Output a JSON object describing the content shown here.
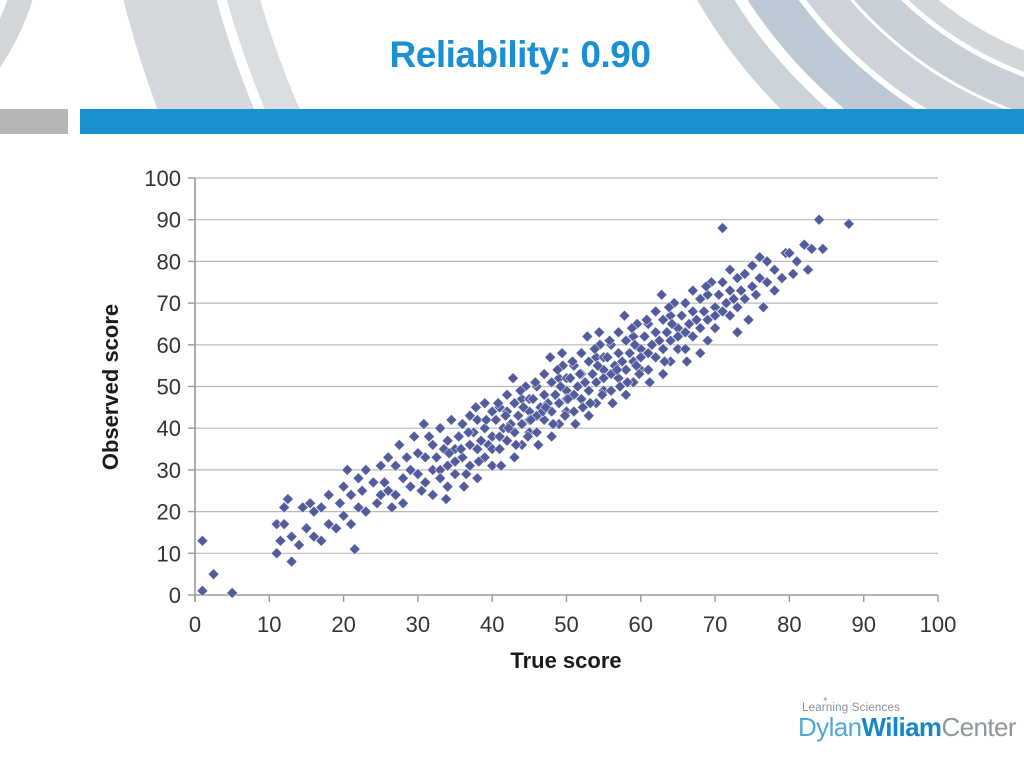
{
  "slide": {
    "title": "Reliability: 0.90"
  },
  "colors": {
    "title_blue": "#1b8fd1",
    "accent_bar_blue": "#1b90cf",
    "accent_left_gray": "#b6b6b6",
    "marker": "#525c9c",
    "gridline": "#b9b9b9",
    "axis": "#9a9a9a",
    "tick_text": "#333333"
  },
  "chart_data": {
    "type": "scatter",
    "title": "",
    "xlabel": "True score",
    "ylabel": "Observed score",
    "xlim": [
      0,
      100
    ],
    "ylim": [
      0,
      100
    ],
    "xticks": [
      0,
      10,
      20,
      30,
      40,
      50,
      60,
      70,
      80,
      90,
      100
    ],
    "yticks": [
      0,
      10,
      20,
      30,
      40,
      50,
      60,
      70,
      80,
      90,
      100
    ],
    "grid": "horizontal",
    "legend": "none",
    "marker": "diamond",
    "marker_color": "#525c9c",
    "points": [
      [
        1,
        13
      ],
      [
        1,
        1
      ],
      [
        2.5,
        5
      ],
      [
        5,
        0.5
      ],
      [
        11,
        10
      ],
      [
        11,
        17
      ],
      [
        11.5,
        13
      ],
      [
        12,
        21
      ],
      [
        12,
        17
      ],
      [
        12.5,
        23
      ],
      [
        13,
        8
      ],
      [
        13,
        14
      ],
      [
        14,
        12
      ],
      [
        14.5,
        21
      ],
      [
        15,
        16
      ],
      [
        15.5,
        22
      ],
      [
        16,
        14
      ],
      [
        16,
        20
      ],
      [
        17,
        13
      ],
      [
        17,
        21
      ],
      [
        18,
        17
      ],
      [
        18,
        24
      ],
      [
        19,
        16
      ],
      [
        19.5,
        22
      ],
      [
        20,
        19
      ],
      [
        20,
        26
      ],
      [
        20.5,
        30
      ],
      [
        21,
        24
      ],
      [
        21,
        17
      ],
      [
        21.5,
        11
      ],
      [
        22,
        28
      ],
      [
        22,
        21
      ],
      [
        22.5,
        25
      ],
      [
        23,
        20
      ],
      [
        23,
        30
      ],
      [
        24,
        27
      ],
      [
        24.5,
        22
      ],
      [
        25,
        24
      ],
      [
        25,
        31
      ],
      [
        25.5,
        27
      ],
      [
        26,
        25
      ],
      [
        26,
        33
      ],
      [
        26.5,
        21
      ],
      [
        27,
        24
      ],
      [
        27,
        31
      ],
      [
        27.5,
        36
      ],
      [
        28,
        28
      ],
      [
        28,
        22
      ],
      [
        28.5,
        33
      ],
      [
        29,
        30
      ],
      [
        29,
        26
      ],
      [
        29.5,
        38
      ],
      [
        30,
        29
      ],
      [
        30,
        34
      ],
      [
        30.5,
        25
      ],
      [
        31,
        33
      ],
      [
        31,
        27
      ],
      [
        31.5,
        38
      ],
      [
        32,
        30
      ],
      [
        32,
        36
      ],
      [
        32,
        24
      ],
      [
        32.5,
        33
      ],
      [
        33,
        30
      ],
      [
        33,
        40
      ],
      [
        33,
        28
      ],
      [
        33.5,
        35
      ],
      [
        34,
        31
      ],
      [
        34,
        37
      ],
      [
        34,
        26
      ],
      [
        34.5,
        42
      ],
      [
        35,
        35
      ],
      [
        35,
        29
      ],
      [
        35,
        32
      ],
      [
        30.8,
        41
      ],
      [
        33.8,
        23
      ],
      [
        34.2,
        34
      ],
      [
        35.5,
        38
      ],
      [
        36,
        33
      ],
      [
        36,
        41
      ],
      [
        36.5,
        29
      ],
      [
        37,
        36
      ],
      [
        37,
        43
      ],
      [
        37,
        31
      ],
      [
        37.5,
        39
      ],
      [
        38,
        35
      ],
      [
        38,
        42
      ],
      [
        38,
        28
      ],
      [
        38.5,
        37
      ],
      [
        39,
        40
      ],
      [
        39,
        33
      ],
      [
        39,
        46
      ],
      [
        39.5,
        36
      ],
      [
        40,
        38
      ],
      [
        40,
        44
      ],
      [
        40,
        31
      ],
      [
        40,
        35
      ],
      [
        36.2,
        26
      ],
      [
        37.8,
        45
      ],
      [
        38.2,
        32
      ],
      [
        39.2,
        42
      ],
      [
        35.8,
        35
      ],
      [
        36.8,
        39
      ],
      [
        40.5,
        42
      ],
      [
        41,
        38
      ],
      [
        41,
        45
      ],
      [
        41,
        35
      ],
      [
        41.5,
        40
      ],
      [
        42,
        44
      ],
      [
        42,
        37
      ],
      [
        42,
        48
      ],
      [
        42.5,
        41
      ],
      [
        43,
        39
      ],
      [
        43,
        46
      ],
      [
        43,
        33
      ],
      [
        43.5,
        43
      ],
      [
        44,
        41
      ],
      [
        44,
        47
      ],
      [
        44,
        36
      ],
      [
        44.5,
        50
      ],
      [
        45,
        44
      ],
      [
        45,
        39
      ],
      [
        45,
        42
      ],
      [
        41.2,
        31
      ],
      [
        42.8,
        52
      ],
      [
        43.2,
        36
      ],
      [
        44.2,
        45
      ],
      [
        40.8,
        46
      ],
      [
        41.8,
        43
      ],
      [
        42.2,
        40
      ],
      [
        43.8,
        49
      ],
      [
        44.8,
        38
      ],
      [
        45,
        47
      ],
      [
        45.5,
        47
      ],
      [
        46,
        43
      ],
      [
        46,
        50
      ],
      [
        46,
        39
      ],
      [
        46.5,
        45
      ],
      [
        47,
        48
      ],
      [
        47,
        42
      ],
      [
        47,
        53
      ],
      [
        47.5,
        46
      ],
      [
        48,
        44
      ],
      [
        48,
        51
      ],
      [
        48,
        38
      ],
      [
        48.5,
        48
      ],
      [
        49,
        46
      ],
      [
        49,
        52
      ],
      [
        49,
        41
      ],
      [
        49.5,
        55
      ],
      [
        50,
        49
      ],
      [
        50,
        44
      ],
      [
        50,
        47
      ],
      [
        46.2,
        36
      ],
      [
        47.8,
        57
      ],
      [
        48.2,
        41
      ],
      [
        49.2,
        50
      ],
      [
        45.8,
        51
      ],
      [
        46.8,
        44
      ],
      [
        47.2,
        45
      ],
      [
        48.8,
        54
      ],
      [
        49.8,
        43
      ],
      [
        50,
        52
      ],
      [
        45.2,
        42
      ],
      [
        49.4,
        58
      ],
      [
        50.5,
        52
      ],
      [
        51,
        48
      ],
      [
        51,
        55
      ],
      [
        51,
        44
      ],
      [
        51.5,
        50
      ],
      [
        52,
        53
      ],
      [
        52,
        47
      ],
      [
        52,
        58
      ],
      [
        52.5,
        51
      ],
      [
        53,
        49
      ],
      [
        53,
        56
      ],
      [
        53,
        43
      ],
      [
        53.5,
        53
      ],
      [
        54,
        51
      ],
      [
        54,
        57
      ],
      [
        54,
        46
      ],
      [
        54.5,
        60
      ],
      [
        55,
        54
      ],
      [
        55,
        49
      ],
      [
        55,
        52
      ],
      [
        51.2,
        41
      ],
      [
        52.8,
        62
      ],
      [
        53.2,
        46
      ],
      [
        54.2,
        55
      ],
      [
        50.8,
        56
      ],
      [
        51.8,
        53
      ],
      [
        52.2,
        45
      ],
      [
        53.8,
        59
      ],
      [
        54.8,
        48
      ],
      [
        55,
        57
      ],
      [
        50.2,
        47
      ],
      [
        54.4,
        63
      ],
      [
        55.5,
        57
      ],
      [
        56,
        53
      ],
      [
        56,
        60
      ],
      [
        56,
        49
      ],
      [
        56.5,
        55
      ],
      [
        57,
        58
      ],
      [
        57,
        52
      ],
      [
        57,
        63
      ],
      [
        57.5,
        56
      ],
      [
        58,
        54
      ],
      [
        58,
        61
      ],
      [
        58,
        48
      ],
      [
        58.5,
        58
      ],
      [
        59,
        56
      ],
      [
        59,
        62
      ],
      [
        59,
        51
      ],
      [
        59.5,
        65
      ],
      [
        60,
        59
      ],
      [
        60,
        54
      ],
      [
        60,
        57
      ],
      [
        56.2,
        46
      ],
      [
        57.8,
        67
      ],
      [
        58.2,
        51
      ],
      [
        59.2,
        60
      ],
      [
        55.8,
        61
      ],
      [
        56.8,
        54
      ],
      [
        57.2,
        50
      ],
      [
        58.8,
        64
      ],
      [
        59.8,
        53
      ],
      [
        59.4,
        55
      ],
      [
        60.5,
        62
      ],
      [
        61,
        58
      ],
      [
        61,
        65
      ],
      [
        61,
        54
      ],
      [
        61.5,
        60
      ],
      [
        62,
        63
      ],
      [
        62,
        57
      ],
      [
        62,
        68
      ],
      [
        62.5,
        61
      ],
      [
        63,
        59
      ],
      [
        63,
        66
      ],
      [
        63,
        53
      ],
      [
        63.5,
        63
      ],
      [
        64,
        61
      ],
      [
        64,
        67
      ],
      [
        64,
        56
      ],
      [
        64.5,
        70
      ],
      [
        65,
        64
      ],
      [
        65,
        59
      ],
      [
        65,
        62
      ],
      [
        61.2,
        51
      ],
      [
        62.8,
        72
      ],
      [
        63.2,
        56
      ],
      [
        64.2,
        65
      ],
      [
        60.8,
        66
      ],
      [
        63.8,
        69
      ],
      [
        65.5,
        67
      ],
      [
        66,
        63
      ],
      [
        66,
        70
      ],
      [
        66,
        59
      ],
      [
        66.5,
        65
      ],
      [
        67,
        68
      ],
      [
        67,
        62
      ],
      [
        67,
        73
      ],
      [
        67.5,
        66
      ],
      [
        68,
        64
      ],
      [
        68,
        71
      ],
      [
        68,
        58
      ],
      [
        68.5,
        68
      ],
      [
        69,
        66
      ],
      [
        69,
        72
      ],
      [
        69,
        61
      ],
      [
        69.5,
        75
      ],
      [
        70,
        69
      ],
      [
        70,
        64
      ],
      [
        70,
        67
      ],
      [
        66.2,
        56
      ],
      [
        68.8,
        74
      ],
      [
        70.5,
        72
      ],
      [
        71,
        68
      ],
      [
        71,
        75
      ],
      [
        71,
        88
      ],
      [
        71.5,
        70
      ],
      [
        72,
        73
      ],
      [
        72,
        67
      ],
      [
        72,
        78
      ],
      [
        72.5,
        71
      ],
      [
        73,
        69
      ],
      [
        73,
        76
      ],
      [
        73,
        63
      ],
      [
        73.5,
        73
      ],
      [
        74,
        71
      ],
      [
        74,
        77
      ],
      [
        74.5,
        66
      ],
      [
        75,
        74
      ],
      [
        75,
        79
      ],
      [
        75.5,
        72
      ],
      [
        76,
        76
      ],
      [
        76,
        81
      ],
      [
        76.5,
        69
      ],
      [
        77,
        75
      ],
      [
        77,
        80
      ],
      [
        78,
        73
      ],
      [
        78,
        78
      ],
      [
        79,
        76
      ],
      [
        79.5,
        82
      ],
      [
        80,
        82
      ],
      [
        80.5,
        77
      ],
      [
        81,
        80
      ],
      [
        82,
        84
      ],
      [
        82.5,
        78
      ],
      [
        83,
        83
      ],
      [
        84,
        90
      ],
      [
        84.5,
        83
      ],
      [
        88,
        89
      ]
    ]
  },
  "logo": {
    "sparkle": "✦",
    "line1_a": "Learning",
    "line1_b": "Sciences",
    "dylan": "Dylan",
    "wiliam": "Wiliam",
    "center": "Center"
  }
}
